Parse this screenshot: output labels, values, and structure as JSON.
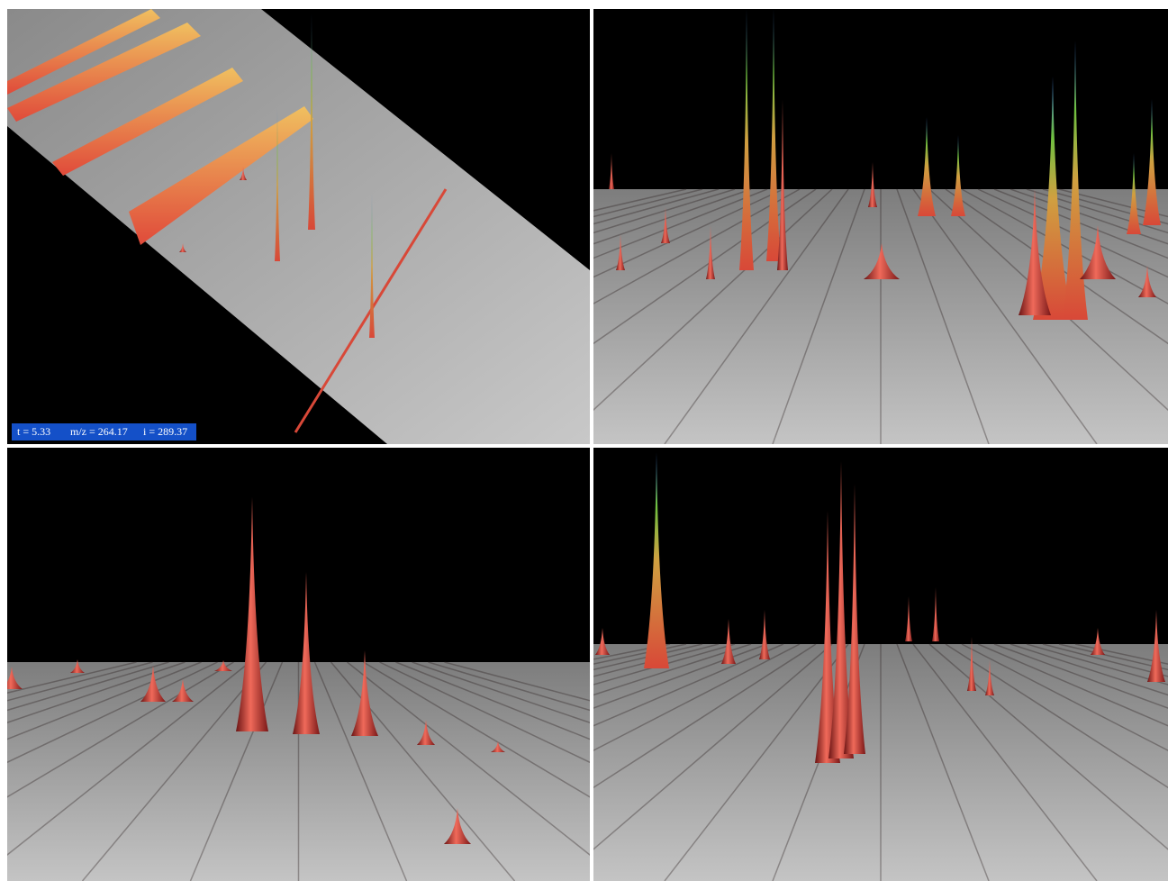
{
  "status": {
    "items": [
      "t =  5.33",
      "m/z = 264.17",
      "i = 289.37"
    ]
  }
}
